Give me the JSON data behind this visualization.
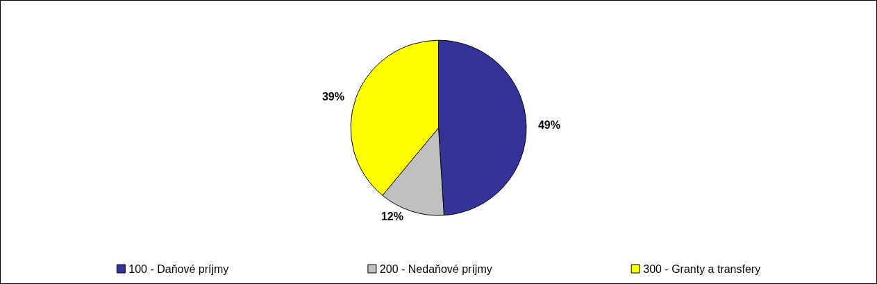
{
  "chart_data": {
    "type": "pie",
    "categories": [
      "100 - Daňové príjmy",
      "200 - Nedaňové príjmy",
      "300 - Granty a transfery"
    ],
    "values": [
      49,
      12,
      39
    ],
    "value_labels": [
      "49%",
      "12%",
      "39%"
    ],
    "colors": [
      "#333399",
      "#c0c0c0",
      "#ffff00"
    ],
    "legend": "bottom"
  }
}
